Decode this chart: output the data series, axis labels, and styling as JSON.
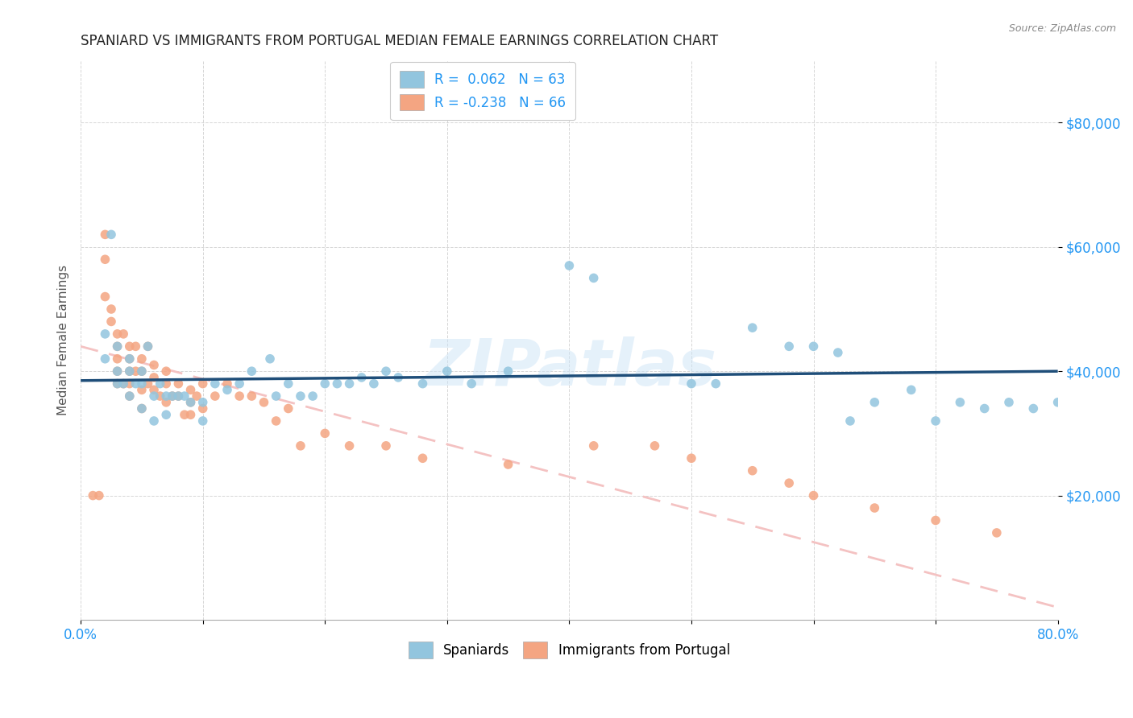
{
  "title": "SPANIARD VS IMMIGRANTS FROM PORTUGAL MEDIAN FEMALE EARNINGS CORRELATION CHART",
  "source": "Source: ZipAtlas.com",
  "ylabel": "Median Female Earnings",
  "watermark": "ZIPatlas",
  "xlim": [
    0.0,
    0.8
  ],
  "ylim": [
    0,
    90000
  ],
  "ytick_vals": [
    20000,
    40000,
    60000,
    80000
  ],
  "ytick_labels": [
    "$20,000",
    "$40,000",
    "$60,000",
    "$80,000"
  ],
  "xticks": [
    0.0,
    0.1,
    0.2,
    0.3,
    0.4,
    0.5,
    0.6,
    0.7,
    0.8
  ],
  "xtick_labels": [
    "0.0%",
    "",
    "",
    "",
    "",
    "",
    "",
    "",
    "80.0%"
  ],
  "blue_color": "#92c5de",
  "pink_color": "#f4a582",
  "line_blue": "#1f4e79",
  "line_pink": "#f4c2c2",
  "axis_color": "#2196F3",
  "spaniards_x": [
    0.02,
    0.02,
    0.025,
    0.03,
    0.03,
    0.03,
    0.035,
    0.04,
    0.04,
    0.04,
    0.045,
    0.05,
    0.05,
    0.05,
    0.055,
    0.06,
    0.06,
    0.065,
    0.07,
    0.07,
    0.075,
    0.08,
    0.085,
    0.09,
    0.1,
    0.1,
    0.11,
    0.12,
    0.13,
    0.14,
    0.155,
    0.16,
    0.17,
    0.18,
    0.19,
    0.2,
    0.21,
    0.22,
    0.23,
    0.24,
    0.25,
    0.26,
    0.28,
    0.3,
    0.32,
    0.35,
    0.4,
    0.42,
    0.5,
    0.52,
    0.55,
    0.58,
    0.6,
    0.62,
    0.63,
    0.65,
    0.68,
    0.7,
    0.72,
    0.74,
    0.76,
    0.78,
    0.8
  ],
  "spaniards_y": [
    46000,
    42000,
    62000,
    38000,
    40000,
    44000,
    38000,
    36000,
    40000,
    42000,
    38000,
    34000,
    38000,
    40000,
    44000,
    32000,
    36000,
    38000,
    33000,
    36000,
    36000,
    36000,
    36000,
    35000,
    32000,
    35000,
    38000,
    37000,
    38000,
    40000,
    42000,
    36000,
    38000,
    36000,
    36000,
    38000,
    38000,
    38000,
    39000,
    38000,
    40000,
    39000,
    38000,
    40000,
    38000,
    40000,
    57000,
    55000,
    38000,
    38000,
    47000,
    44000,
    44000,
    43000,
    32000,
    35000,
    37000,
    32000,
    35000,
    34000,
    35000,
    34000,
    35000
  ],
  "portugal_x": [
    0.01,
    0.015,
    0.02,
    0.02,
    0.02,
    0.025,
    0.025,
    0.03,
    0.03,
    0.03,
    0.03,
    0.03,
    0.035,
    0.035,
    0.04,
    0.04,
    0.04,
    0.04,
    0.04,
    0.045,
    0.045,
    0.05,
    0.05,
    0.05,
    0.05,
    0.055,
    0.055,
    0.06,
    0.06,
    0.06,
    0.065,
    0.07,
    0.07,
    0.07,
    0.075,
    0.08,
    0.08,
    0.085,
    0.09,
    0.09,
    0.09,
    0.095,
    0.1,
    0.1,
    0.11,
    0.12,
    0.13,
    0.14,
    0.15,
    0.16,
    0.17,
    0.18,
    0.2,
    0.22,
    0.25,
    0.28,
    0.35,
    0.42,
    0.47,
    0.5,
    0.55,
    0.58,
    0.6,
    0.65,
    0.7,
    0.75
  ],
  "portugal_y": [
    20000,
    20000,
    62000,
    58000,
    52000,
    50000,
    48000,
    46000,
    44000,
    42000,
    40000,
    38000,
    46000,
    38000,
    44000,
    42000,
    40000,
    38000,
    36000,
    44000,
    40000,
    42000,
    40000,
    37000,
    34000,
    44000,
    38000,
    41000,
    39000,
    37000,
    36000,
    40000,
    38000,
    35000,
    36000,
    38000,
    36000,
    33000,
    37000,
    35000,
    33000,
    36000,
    38000,
    34000,
    36000,
    38000,
    36000,
    36000,
    35000,
    32000,
    34000,
    28000,
    30000,
    28000,
    28000,
    26000,
    25000,
    28000,
    28000,
    26000,
    24000,
    22000,
    20000,
    18000,
    16000,
    14000
  ]
}
